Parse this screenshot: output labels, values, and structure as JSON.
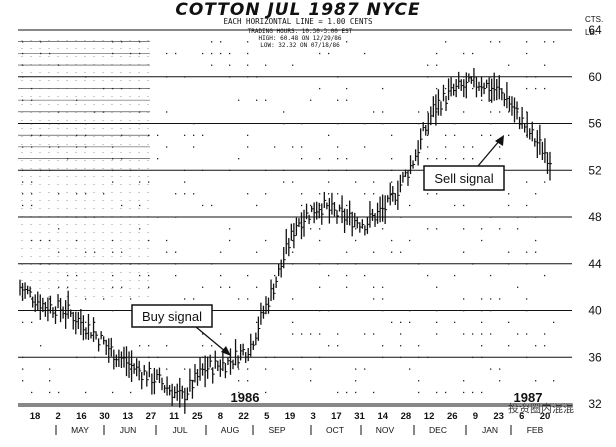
{
  "chart_data": {
    "type": "bar",
    "subtype": "ohlc-price-chart",
    "title": "COTTON JUL 1987 NYCE",
    "subtitle": "EACH HORIZONTAL LINE = 1.00 CENTS",
    "info_lines": [
      "TRADING HOURS: 10:30-3:00 EST",
      "HIGH: 60.48 ON 12/29/86",
      "LOW: 32.32 ON 07/18/86"
    ],
    "y_unit_top": "CTS.",
    "y_unit_bottom": "LB.",
    "ylim": [
      32,
      64
    ],
    "y_ticks": [
      "64",
      "60",
      "56",
      "52",
      "48",
      "44",
      "40",
      "36",
      "32"
    ],
    "x_dates": [
      "18",
      "2",
      "16",
      "30",
      "13",
      "27",
      "11",
      "25",
      "8",
      "22",
      "5",
      "19",
      "3",
      "17",
      "31",
      "14",
      "28",
      "12",
      "26",
      "9",
      "23",
      "6",
      "20"
    ],
    "x_months": [
      "MAY",
      "JUN",
      "JUL",
      "AUG",
      "SEP",
      "OCT",
      "NOV",
      "DEC",
      "JAN",
      "FEB"
    ],
    "year_labels": [
      "1986",
      "1987"
    ],
    "annotations": [
      {
        "text": "Buy signal",
        "target": "late July 1986 low"
      },
      {
        "text": "Sell signal",
        "target": "January 1987 breakdown"
      }
    ],
    "series": [
      {
        "x": [
          "Apr 18",
          "May 2",
          "May 16",
          "May 30",
          "Jun 13",
          "Jun 27",
          "Jul 11",
          "Jul 18",
          "Jul 25",
          "Aug 8",
          "Aug 22",
          "Sep 5",
          "Sep 19",
          "Oct 3",
          "Oct 17",
          "Oct 31",
          "Nov 14",
          "Nov 28",
          "Dec 12",
          "Dec 26",
          "Jan 9",
          "Jan 23",
          "Feb 6",
          "Feb 20"
        ],
        "values": [
          42.0,
          40.5,
          40.0,
          38.5,
          36.5,
          35.0,
          34.0,
          32.5,
          35.0,
          35.5,
          37.0,
          42.0,
          47.5,
          49.0,
          48.0,
          47.5,
          49.0,
          52.5,
          57.5,
          59.0,
          59.5,
          58.5,
          55.5,
          53.0
        ]
      }
    ],
    "grid": true
  },
  "watermark": "投资圈内混混"
}
